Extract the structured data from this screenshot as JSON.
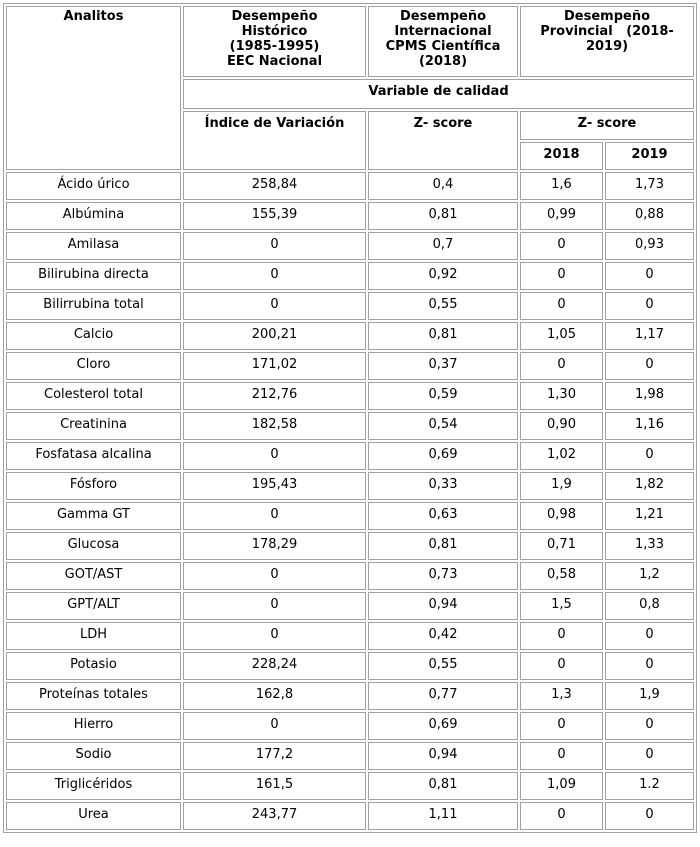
{
  "header": {
    "analitos": "Analitos",
    "historico": [
      "Desempeño",
      "Histórico",
      "(1985-1995)",
      "EEC Nacional"
    ],
    "internacional": [
      "Desempeño",
      "Internacional",
      "CPMS Científica",
      "(2018)"
    ],
    "provincial": [
      "Desempeño",
      "Provincial   (2018-",
      "2019)"
    ],
    "variable": "Variable de calidad",
    "indice": "Índice de Variación",
    "zscore_int": "Z- score",
    "zscore_prov": "Z- score",
    "y2018": "2018",
    "y2019": "2019"
  },
  "rows": [
    [
      "Ácido úrico",
      "258,84",
      "0,4",
      "1,6",
      "1,73"
    ],
    [
      "Albúmina",
      "155,39",
      "0,81",
      "0,99",
      "0,88"
    ],
    [
      "Amilasa",
      "0",
      "0,7",
      "0",
      "0,93"
    ],
    [
      "Bilirubina directa",
      "0",
      "0,92",
      "0",
      "0"
    ],
    [
      "Bilirrubina total",
      "0",
      "0,55",
      "0",
      "0"
    ],
    [
      "Calcio",
      "200,21",
      "0,81",
      "1,05",
      "1,17"
    ],
    [
      "Cloro",
      "171,02",
      "0,37",
      "0",
      "0"
    ],
    [
      "Colesterol total",
      "212,76",
      "0,59",
      "1,30",
      "1,98"
    ],
    [
      "Creatinina",
      "182,58",
      "0,54",
      "0,90",
      "1,16"
    ],
    [
      "Fosfatasa alcalina",
      "0",
      "0,69",
      "1,02",
      "0"
    ],
    [
      "Fósforo",
      "195,43",
      "0,33",
      "1,9",
      "1,82"
    ],
    [
      "Gamma GT",
      "0",
      "0,63",
      "0,98",
      "1,21"
    ],
    [
      "Glucosa",
      "178,29",
      "0,81",
      "0,71",
      "1,33"
    ],
    [
      "GOT/AST",
      "0",
      "0,73",
      "0,58",
      "1,2"
    ],
    [
      "GPT/ALT",
      "0",
      "0,94",
      "1,5",
      "0,8"
    ],
    [
      "LDH",
      "0",
      "0,42",
      "0",
      "0"
    ],
    [
      "Potasio",
      "228,24",
      "0,55",
      "0",
      "0"
    ],
    [
      "Proteínas totales",
      "162,8",
      "0,77",
      "1,3",
      "1,9"
    ],
    [
      "Hierro",
      "0",
      "0,69",
      "0",
      "0"
    ],
    [
      "Sodio",
      "177,2",
      "0,94",
      "0",
      "0"
    ],
    [
      "Triglicéridos",
      "161,5",
      "0,81",
      "1,09",
      "1.2"
    ],
    [
      "Urea",
      "243,77",
      "1,11",
      "0",
      "0"
    ]
  ]
}
